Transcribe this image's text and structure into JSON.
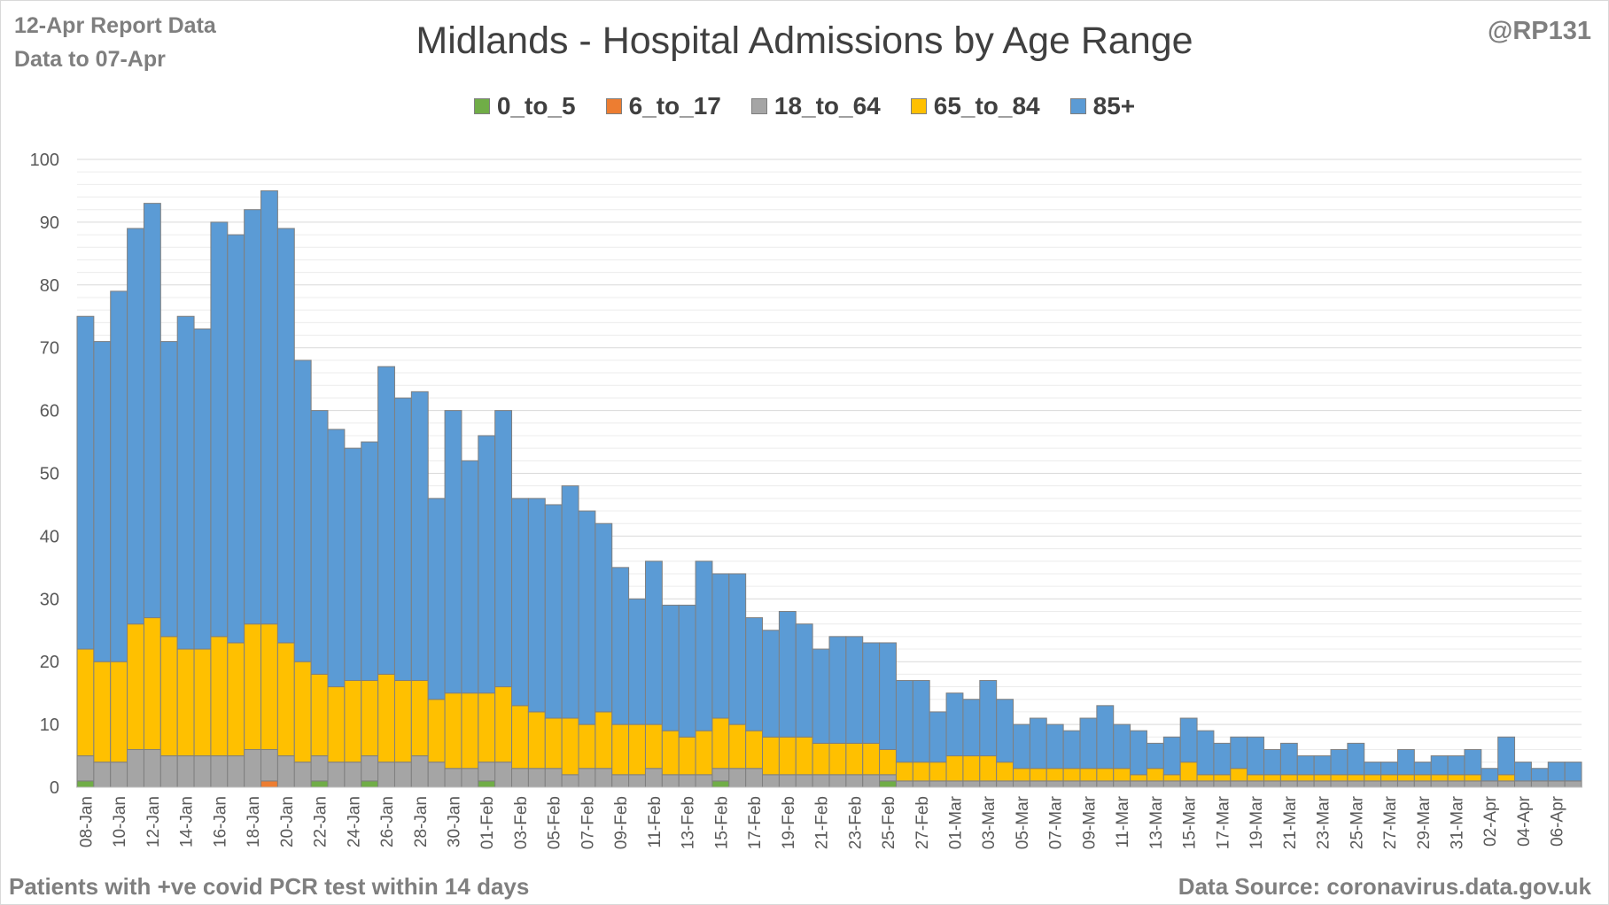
{
  "header": {
    "report_line1": "12-Apr Report Data",
    "report_line2": "Data to 07-Apr",
    "handle": "@RP131"
  },
  "footer": {
    "note": "Patients with  +ve covid PCR test within 14 days",
    "source": "Data Source: coronavirus.data.gov.uk"
  },
  "colors": {
    "0_to_5": "#70ad47",
    "6_to_17": "#ed7d31",
    "18_to_64": "#a5a5a5",
    "65_to_84": "#ffc000",
    "85+": "#5b9bd5",
    "bar_outline": "#7f7f7f",
    "grid": "#d9d9d9"
  },
  "chart_data": {
    "type": "bar",
    "stacked": true,
    "title": "Midlands - Hospital Admissions by Age Range",
    "xlabel": "",
    "ylabel": "",
    "ylim": [
      0,
      100
    ],
    "yticks": [
      0,
      10,
      20,
      30,
      40,
      50,
      60,
      70,
      80,
      90,
      100
    ],
    "legend_position": "top",
    "grid": true,
    "categories": [
      "08-Jan",
      "09-Jan",
      "10-Jan",
      "11-Jan",
      "12-Jan",
      "13-Jan",
      "14-Jan",
      "15-Jan",
      "16-Jan",
      "17-Jan",
      "18-Jan",
      "19-Jan",
      "20-Jan",
      "21-Jan",
      "22-Jan",
      "23-Jan",
      "24-Jan",
      "25-Jan",
      "26-Jan",
      "27-Jan",
      "28-Jan",
      "29-Jan",
      "30-Jan",
      "31-Jan",
      "01-Feb",
      "02-Feb",
      "03-Feb",
      "04-Feb",
      "05-Feb",
      "06-Feb",
      "07-Feb",
      "08-Feb",
      "09-Feb",
      "10-Feb",
      "11-Feb",
      "12-Feb",
      "13-Feb",
      "14-Feb",
      "15-Feb",
      "16-Feb",
      "17-Feb",
      "18-Feb",
      "19-Feb",
      "20-Feb",
      "21-Feb",
      "22-Feb",
      "23-Feb",
      "24-Feb",
      "25-Feb",
      "26-Feb",
      "27-Feb",
      "28-Feb",
      "01-Mar",
      "02-Mar",
      "03-Mar",
      "04-Mar",
      "05-Mar",
      "06-Mar",
      "07-Mar",
      "08-Mar",
      "09-Mar",
      "10-Mar",
      "11-Mar",
      "12-Mar",
      "13-Mar",
      "14-Mar",
      "15-Mar",
      "16-Mar",
      "17-Mar",
      "18-Mar",
      "19-Mar",
      "20-Mar",
      "21-Mar",
      "22-Mar",
      "23-Mar",
      "24-Mar",
      "25-Mar",
      "26-Mar",
      "27-Mar",
      "28-Mar",
      "29-Mar",
      "30-Mar",
      "31-Mar",
      "01-Apr",
      "02-Apr",
      "03-Apr",
      "04-Apr",
      "05-Apr",
      "06-Apr",
      "07-Apr"
    ],
    "series": [
      {
        "name": "0_to_5",
        "values": [
          1,
          0,
          0,
          0,
          0,
          0,
          0,
          0,
          0,
          0,
          0,
          0,
          0,
          0,
          1,
          0,
          0,
          1,
          0,
          0,
          0,
          0,
          0,
          0,
          1,
          0,
          0,
          0,
          0,
          0,
          0,
          0,
          0,
          0,
          0,
          0,
          0,
          0,
          1,
          0,
          0,
          0,
          0,
          0,
          0,
          0,
          0,
          0,
          1,
          0,
          0,
          0,
          0,
          0,
          0,
          0,
          0,
          0,
          0,
          0,
          0,
          0,
          0,
          0,
          0,
          0,
          0,
          0,
          0,
          0,
          0,
          0,
          0,
          0,
          0,
          0,
          0,
          0,
          0,
          0,
          0,
          0,
          0,
          0,
          0,
          0,
          0,
          0,
          0,
          0
        ]
      },
      {
        "name": "6_to_17",
        "values": [
          0,
          0,
          0,
          0,
          0,
          0,
          0,
          0,
          0,
          0,
          0,
          1,
          0,
          0,
          0,
          0,
          0,
          0,
          0,
          0,
          0,
          0,
          0,
          0,
          0,
          0,
          0,
          0,
          0,
          0,
          0,
          0,
          0,
          0,
          0,
          0,
          0,
          0,
          0,
          0,
          0,
          0,
          0,
          0,
          0,
          0,
          0,
          0,
          0,
          0,
          0,
          0,
          0,
          0,
          0,
          0,
          0,
          0,
          0,
          0,
          0,
          0,
          0,
          0,
          0,
          0,
          0,
          0,
          0,
          0,
          0,
          0,
          0,
          0,
          0,
          0,
          0,
          0,
          0,
          0,
          0,
          0,
          0,
          0,
          0,
          0,
          0,
          0,
          0,
          0
        ]
      },
      {
        "name": "18_to_64",
        "values": [
          4,
          4,
          4,
          6,
          6,
          5,
          5,
          5,
          5,
          5,
          6,
          5,
          5,
          4,
          4,
          4,
          4,
          4,
          4,
          4,
          5,
          4,
          3,
          3,
          3,
          4,
          3,
          3,
          3,
          2,
          3,
          3,
          2,
          2,
          3,
          2,
          2,
          2,
          2,
          3,
          3,
          2,
          2,
          2,
          2,
          2,
          2,
          2,
          1,
          1,
          1,
          1,
          1,
          1,
          1,
          1,
          1,
          1,
          1,
          1,
          1,
          1,
          1,
          1,
          1,
          1,
          1,
          1,
          1,
          1,
          1,
          1,
          1,
          1,
          1,
          1,
          1,
          1,
          1,
          1,
          1,
          1,
          1,
          1,
          1,
          1,
          1,
          1,
          1,
          1
        ]
      },
      {
        "name": "65_to_84",
        "values": [
          17,
          16,
          16,
          20,
          21,
          19,
          17,
          17,
          19,
          18,
          20,
          20,
          18,
          16,
          13,
          12,
          13,
          12,
          14,
          13,
          12,
          10,
          12,
          12,
          11,
          12,
          10,
          9,
          8,
          9,
          7,
          9,
          8,
          8,
          7,
          7,
          6,
          7,
          8,
          7,
          6,
          6,
          6,
          6,
          5,
          5,
          5,
          5,
          4,
          3,
          3,
          3,
          4,
          4,
          4,
          3,
          2,
          2,
          2,
          2,
          2,
          2,
          2,
          1,
          2,
          1,
          3,
          1,
          1,
          2,
          1,
          1,
          1,
          1,
          1,
          1,
          1,
          1,
          1,
          1,
          1,
          1,
          1,
          1,
          0,
          1,
          0,
          0,
          0,
          0
        ]
      },
      {
        "name": "85+",
        "values": [
          53,
          51,
          59,
          63,
          66,
          47,
          53,
          51,
          66,
          65,
          66,
          69,
          66,
          48,
          42,
          41,
          37,
          38,
          49,
          45,
          46,
          32,
          45,
          37,
          41,
          44,
          33,
          34,
          34,
          37,
          34,
          30,
          25,
          20,
          26,
          20,
          21,
          27,
          23,
          24,
          18,
          17,
          20,
          18,
          15,
          17,
          17,
          16,
          17,
          13,
          13,
          8,
          10,
          9,
          12,
          10,
          7,
          8,
          7,
          6,
          8,
          10,
          7,
          7,
          4,
          6,
          7,
          7,
          5,
          5,
          6,
          4,
          5,
          3,
          3,
          4,
          5,
          2,
          2,
          4,
          2,
          3,
          3,
          4,
          2,
          6,
          3,
          2,
          3,
          3
        ]
      }
    ]
  }
}
